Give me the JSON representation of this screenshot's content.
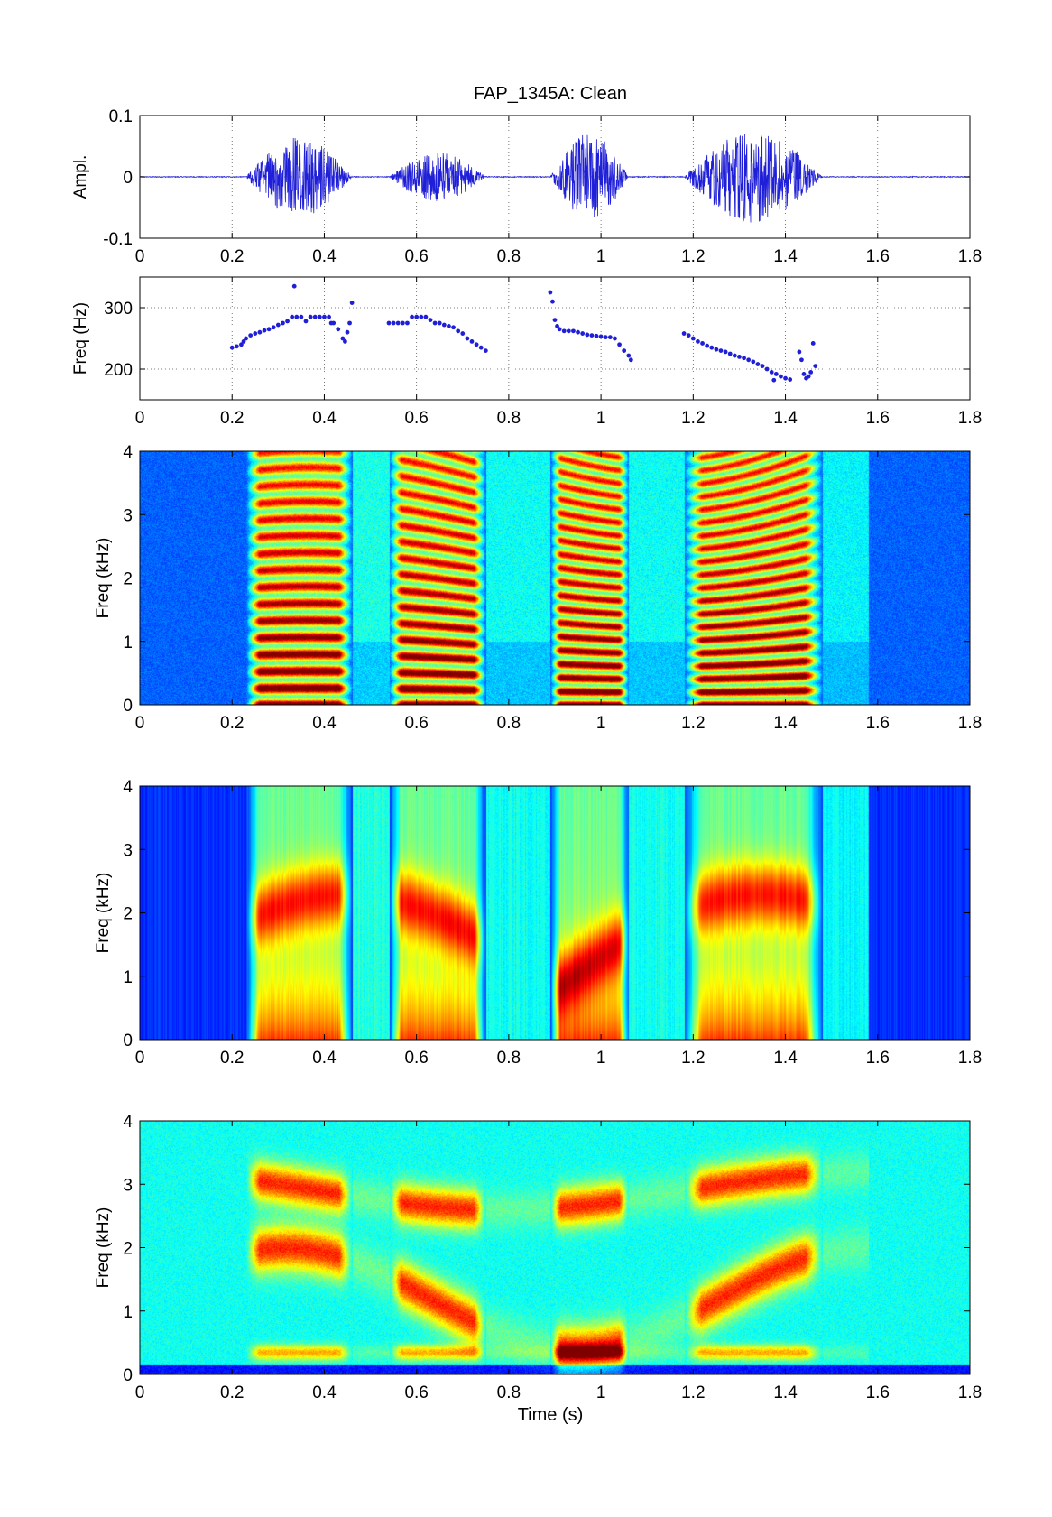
{
  "figure": {
    "title": "FAP_1345A: Clean",
    "time_label": "Time (s)"
  },
  "colors": {
    "trace": "#1f1fd8",
    "grid": "#555555",
    "jet_low": "#000090",
    "jet_high": "#800000"
  },
  "chart_data": [
    {
      "type": "line",
      "name": "waveform",
      "ylabel": "Ampl.",
      "xlim": [
        0,
        1.8
      ],
      "ylim": [
        -0.1,
        0.1
      ],
      "xticks": [
        "0",
        "0.2",
        "0.4",
        "0.6",
        "0.8",
        "1",
        "1.2",
        "1.4",
        "1.6",
        "1.8"
      ],
      "yticks": [
        "0.1",
        "0",
        "-0.1"
      ],
      "grid": true,
      "voiced_segments": [
        {
          "start": 0.23,
          "end": 0.46,
          "peak": 0.065
        },
        {
          "start": 0.54,
          "end": 0.75,
          "peak": 0.04
        },
        {
          "start": 0.89,
          "end": 1.06,
          "peak": 0.07
        },
        {
          "start": 1.18,
          "end": 1.48,
          "peak": 0.075
        }
      ]
    },
    {
      "type": "scatter",
      "name": "pitch",
      "ylabel": "Freq (Hz)",
      "xlim": [
        0,
        1.8
      ],
      "ylim": [
        150,
        350
      ],
      "xticks": [
        "0",
        "0.2",
        "0.4",
        "0.6",
        "0.8",
        "1",
        "1.2",
        "1.4",
        "1.6",
        "1.8"
      ],
      "yticks": [
        "300",
        "200"
      ],
      "grid": true,
      "points": [
        [
          0.2,
          235
        ],
        [
          0.21,
          237
        ],
        [
          0.22,
          240
        ],
        [
          0.225,
          245
        ],
        [
          0.23,
          250
        ],
        [
          0.24,
          255
        ],
        [
          0.25,
          258
        ],
        [
          0.26,
          260
        ],
        [
          0.27,
          263
        ],
        [
          0.28,
          265
        ],
        [
          0.29,
          268
        ],
        [
          0.3,
          272
        ],
        [
          0.31,
          275
        ],
        [
          0.32,
          278
        ],
        [
          0.33,
          285
        ],
        [
          0.335,
          335
        ],
        [
          0.34,
          285
        ],
        [
          0.35,
          285
        ],
        [
          0.36,
          278
        ],
        [
          0.37,
          285
        ],
        [
          0.38,
          285
        ],
        [
          0.39,
          285
        ],
        [
          0.4,
          285
        ],
        [
          0.41,
          285
        ],
        [
          0.415,
          275
        ],
        [
          0.42,
          275
        ],
        [
          0.43,
          265
        ],
        [
          0.44,
          250
        ],
        [
          0.445,
          245
        ],
        [
          0.45,
          260
        ],
        [
          0.455,
          275
        ],
        [
          0.46,
          308
        ],
        [
          0.54,
          275
        ],
        [
          0.55,
          275
        ],
        [
          0.56,
          275
        ],
        [
          0.57,
          275
        ],
        [
          0.58,
          275
        ],
        [
          0.59,
          285
        ],
        [
          0.6,
          285
        ],
        [
          0.61,
          285
        ],
        [
          0.62,
          285
        ],
        [
          0.63,
          280
        ],
        [
          0.64,
          275
        ],
        [
          0.65,
          275
        ],
        [
          0.66,
          272
        ],
        [
          0.67,
          270
        ],
        [
          0.68,
          268
        ],
        [
          0.69,
          262
        ],
        [
          0.7,
          258
        ],
        [
          0.71,
          250
        ],
        [
          0.72,
          245
        ],
        [
          0.73,
          240
        ],
        [
          0.74,
          235
        ],
        [
          0.75,
          230
        ],
        [
          0.89,
          325
        ],
        [
          0.895,
          310
        ],
        [
          0.9,
          280
        ],
        [
          0.905,
          270
        ],
        [
          0.91,
          265
        ],
        [
          0.92,
          262
        ],
        [
          0.93,
          262
        ],
        [
          0.94,
          262
        ],
        [
          0.95,
          260
        ],
        [
          0.96,
          258
        ],
        [
          0.97,
          256
        ],
        [
          0.98,
          255
        ],
        [
          0.99,
          254
        ],
        [
          1.0,
          253
        ],
        [
          1.01,
          252
        ],
        [
          1.02,
          252
        ],
        [
          1.03,
          250
        ],
        [
          1.04,
          240
        ],
        [
          1.05,
          230
        ],
        [
          1.06,
          222
        ],
        [
          1.065,
          215
        ],
        [
          1.18,
          258
        ],
        [
          1.19,
          255
        ],
        [
          1.2,
          250
        ],
        [
          1.21,
          245
        ],
        [
          1.22,
          242
        ],
        [
          1.23,
          238
        ],
        [
          1.24,
          235
        ],
        [
          1.25,
          232
        ],
        [
          1.26,
          230
        ],
        [
          1.27,
          228
        ],
        [
          1.28,
          225
        ],
        [
          1.29,
          222
        ],
        [
          1.3,
          220
        ],
        [
          1.31,
          218
        ],
        [
          1.32,
          215
        ],
        [
          1.33,
          212
        ],
        [
          1.34,
          208
        ],
        [
          1.35,
          205
        ],
        [
          1.36,
          200
        ],
        [
          1.37,
          195
        ],
        [
          1.375,
          182
        ],
        [
          1.38,
          192
        ],
        [
          1.39,
          188
        ],
        [
          1.4,
          185
        ],
        [
          1.41,
          183
        ],
        [
          1.43,
          228
        ],
        [
          1.435,
          215
        ],
        [
          1.44,
          192
        ],
        [
          1.445,
          185
        ],
        [
          1.45,
          188
        ],
        [
          1.455,
          195
        ],
        [
          1.46,
          242
        ],
        [
          1.465,
          205
        ]
      ]
    },
    {
      "type": "heatmap",
      "name": "spectrogram-narrowband",
      "ylabel": "Freq (kHz)",
      "xlim": [
        0,
        1.8
      ],
      "ylim": [
        0,
        4
      ],
      "xticks": [
        "0",
        "0.2",
        "0.4",
        "0.6",
        "0.8",
        "1",
        "1.2",
        "1.4",
        "1.6",
        "1.8"
      ],
      "yticks": [
        "4",
        "3",
        "2",
        "1",
        "0"
      ],
      "colormap": "jet"
    },
    {
      "type": "heatmap",
      "name": "spectrogram-wideband",
      "ylabel": "Freq (kHz)",
      "xlim": [
        0,
        1.8
      ],
      "ylim": [
        0,
        4
      ],
      "xticks": [
        "0",
        "0.2",
        "0.4",
        "0.6",
        "0.8",
        "1",
        "1.2",
        "1.4",
        "1.6",
        "1.8"
      ],
      "yticks": [
        "4",
        "3",
        "2",
        "1",
        "0"
      ],
      "colormap": "jet"
    },
    {
      "type": "heatmap",
      "name": "spectrogram-smoothed",
      "ylabel": "Freq (kHz)",
      "xlabel": "Time (s)",
      "xlim": [
        0,
        1.8
      ],
      "ylim": [
        0,
        4
      ],
      "xticks": [
        "0",
        "0.2",
        "0.4",
        "0.6",
        "0.8",
        "1",
        "1.2",
        "1.4",
        "1.6",
        "1.8"
      ],
      "yticks": [
        "4",
        "3",
        "2",
        "1",
        "0"
      ],
      "colormap": "jet"
    }
  ]
}
